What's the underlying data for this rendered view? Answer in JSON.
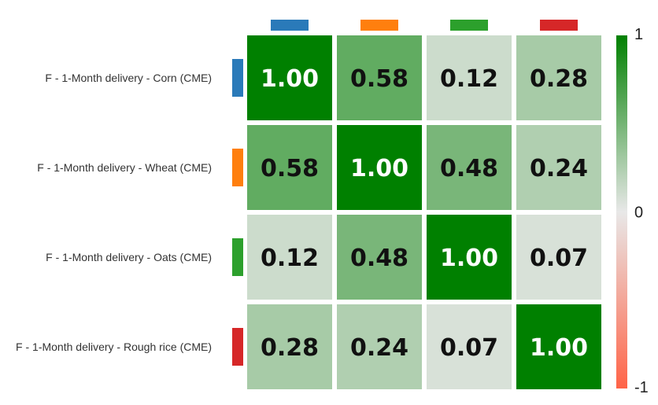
{
  "chart_data": {
    "type": "heatmap",
    "title": "",
    "rows": [
      {
        "label": "F - 1-Month delivery - Corn (CME)",
        "color": "#2a7ab9"
      },
      {
        "label": "F - 1-Month delivery - Wheat (CME)",
        "color": "#ff7f0e"
      },
      {
        "label": "F - 1-Month delivery - Oats (CME)",
        "color": "#2ca02c"
      },
      {
        "label": "F - 1-Month delivery - Rough rice (CME)",
        "color": "#d62728"
      }
    ],
    "values": [
      [
        1.0,
        0.58,
        0.12,
        0.28
      ],
      [
        0.58,
        1.0,
        0.48,
        0.24
      ],
      [
        0.12,
        0.48,
        1.0,
        0.07
      ],
      [
        0.28,
        0.24,
        0.07,
        1.0
      ]
    ],
    "value_format": "0.00",
    "color_scale": {
      "min": -1,
      "mid": 0,
      "max": 1,
      "min_color": "#ff6347",
      "mid_color": "#e8e8e8",
      "max_color": "#008000"
    },
    "colorbar": {
      "labels": [
        "1",
        "0",
        "-1"
      ],
      "position": "right"
    }
  }
}
